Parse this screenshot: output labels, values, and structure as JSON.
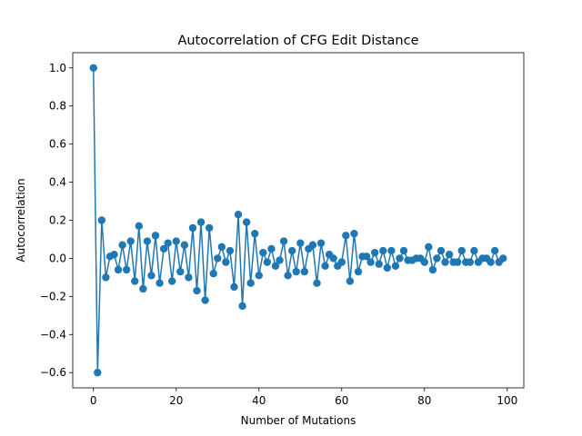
{
  "chart_data": {
    "type": "line",
    "title": "Autocorrelation of CFG Edit Distance",
    "xlabel": "Number of Mutations",
    "ylabel": "Autocorrelation",
    "xlim": [
      -5,
      104
    ],
    "ylim": [
      -0.68,
      1.08
    ],
    "x_ticks": [
      0,
      20,
      40,
      60,
      80,
      100
    ],
    "y_ticks": [
      -0.6,
      -0.4,
      -0.2,
      0.0,
      0.2,
      0.4,
      0.6,
      0.8,
      1.0
    ],
    "y_tick_labels": [
      "−0.6",
      "−0.4",
      "−0.2",
      "0.0",
      "0.2",
      "0.4",
      "0.6",
      "0.8",
      "1.0"
    ],
    "grid": false,
    "marker": "circle",
    "color": "#1f77b4",
    "series": [
      {
        "x": [
          0,
          1,
          2,
          3,
          4,
          5,
          6,
          7,
          8,
          9,
          10,
          11,
          12,
          13,
          14,
          15,
          16,
          17,
          18,
          19,
          20,
          21,
          22,
          23,
          24,
          25,
          26,
          27,
          28,
          29,
          30,
          31,
          32,
          33,
          34,
          35,
          36,
          37,
          38,
          39,
          40,
          41,
          42,
          43,
          44,
          45,
          46,
          47,
          48,
          49,
          50,
          51,
          52,
          53,
          54,
          55,
          56,
          57,
          58,
          59,
          60,
          61,
          62,
          63,
          64,
          65,
          66,
          67,
          68,
          69,
          70,
          71,
          72,
          73,
          74,
          75,
          76,
          77,
          78,
          79,
          80,
          81,
          82,
          83,
          84,
          85,
          86,
          87,
          88,
          89,
          90,
          91,
          92,
          93,
          94,
          95,
          96,
          97,
          98,
          99
        ],
        "y": [
          1.0,
          -0.6,
          0.2,
          -0.1,
          0.01,
          0.02,
          -0.06,
          0.07,
          -0.06,
          0.09,
          -0.12,
          0.17,
          -0.16,
          0.09,
          -0.09,
          0.12,
          -0.13,
          0.05,
          0.08,
          -0.12,
          0.09,
          -0.07,
          0.07,
          -0.1,
          0.16,
          -0.17,
          0.19,
          -0.22,
          0.16,
          -0.08,
          0.0,
          0.06,
          -0.02,
          0.04,
          -0.15,
          0.23,
          -0.25,
          0.19,
          -0.13,
          0.13,
          -0.09,
          0.03,
          -0.02,
          0.05,
          -0.04,
          -0.01,
          0.09,
          -0.09,
          0.04,
          -0.07,
          0.08,
          -0.07,
          0.05,
          0.07,
          -0.13,
          0.08,
          -0.04,
          0.02,
          0.0,
          -0.04,
          -0.02,
          0.12,
          -0.12,
          0.13,
          -0.07,
          0.01,
          0.01,
          -0.02,
          0.03,
          -0.03,
          0.04,
          -0.05,
          0.04,
          -0.04,
          0.0,
          0.04,
          -0.01,
          -0.01,
          0.0,
          0.0,
          -0.02,
          0.06,
          -0.06,
          0.0,
          0.04,
          -0.02,
          0.02,
          -0.02,
          -0.02,
          0.04,
          -0.02,
          -0.02,
          0.04,
          -0.02,
          0.0,
          0.0,
          -0.02,
          0.04,
          -0.02,
          0.0
        ]
      }
    ]
  }
}
